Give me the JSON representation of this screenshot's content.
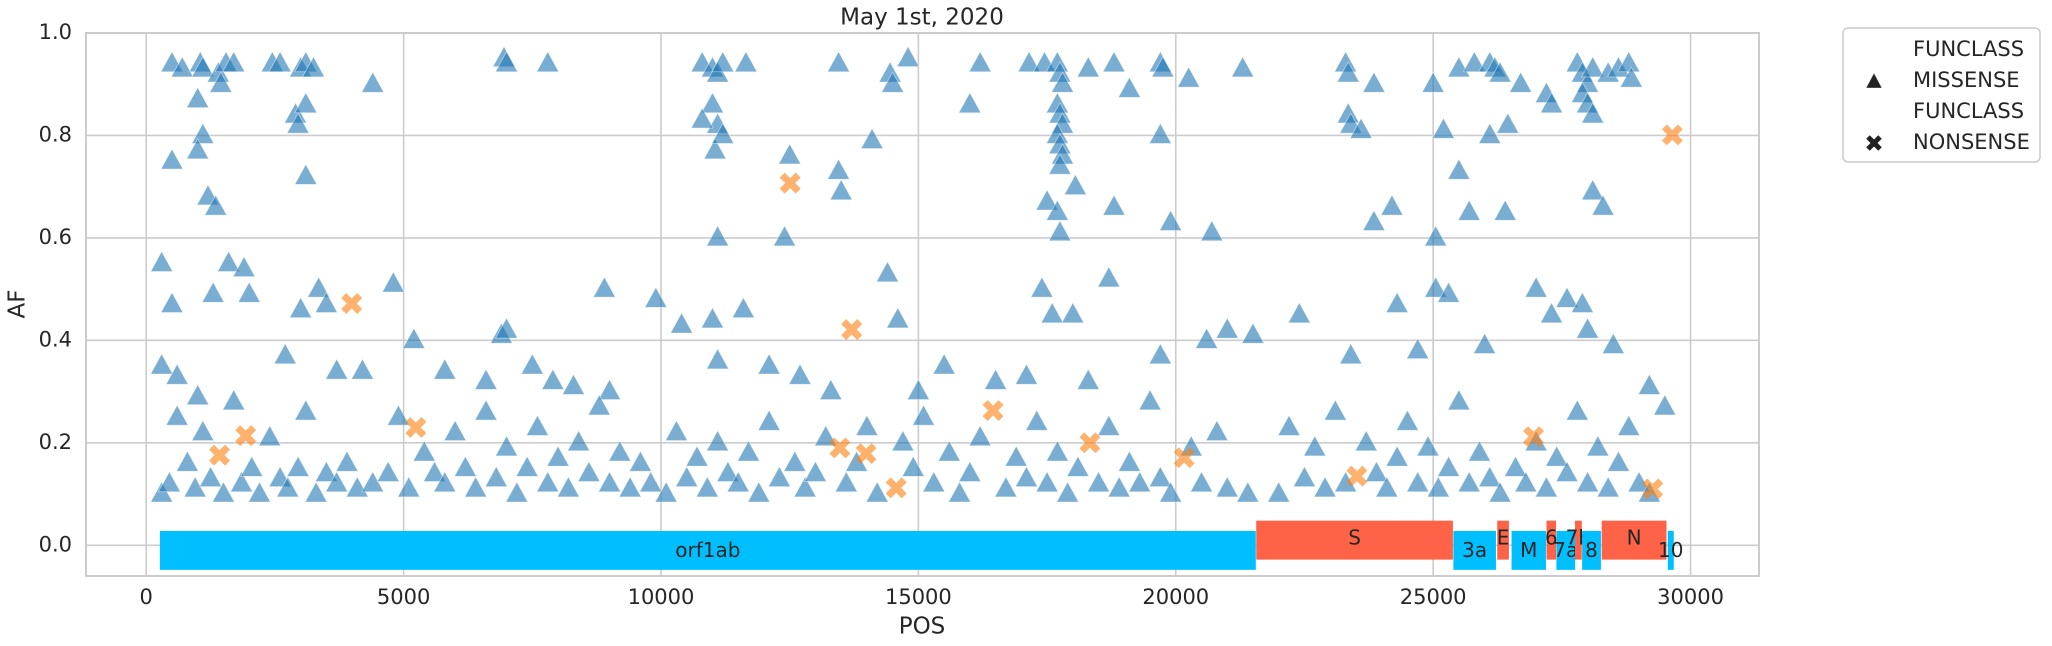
{
  "chart_data": {
    "type": "scatter",
    "title": "May 1st, 2020",
    "x_label": "POS",
    "y_label": "AF",
    "xlim": [
      -1170,
      31330
    ],
    "ylim": [
      -0.06,
      1.0
    ],
    "xticks": [
      0,
      5000,
      10000,
      15000,
      20000,
      25000,
      30000
    ],
    "yticks": [
      {
        "value": 0,
        "label": "0.0"
      },
      {
        "value": 0.2,
        "label": "0.2"
      },
      {
        "value": 0.4,
        "label": "0.4"
      },
      {
        "value": 0.6,
        "label": "0.6"
      },
      {
        "value": 0.8,
        "label": "0.8"
      },
      {
        "value": 1.0,
        "label": "1.0"
      }
    ],
    "grid": true,
    "legend": "outside-right",
    "series": [
      {
        "name": "MISSENSE",
        "legend_title": "FUNCLASS",
        "marker": "triangle",
        "color": "#1f77b4",
        "x": [
          500,
          700,
          1050,
          1100,
          1400,
          1450,
          1550,
          1700,
          2450,
          2600,
          3000,
          3100,
          3250,
          4400,
          6950,
          7000,
          7800,
          10800,
          11000,
          11100,
          11200,
          11650,
          13450,
          14450,
          14500,
          14800,
          16200,
          17150,
          17450,
          17700,
          17750,
          17800,
          18300,
          18800,
          19100,
          19700,
          19750,
          20250,
          21300,
          23300,
          23350,
          23850,
          25000,
          25500,
          25800,
          26100,
          26200,
          26300,
          26700,
          27200,
          27800,
          27900,
          28000,
          28100,
          28400,
          28600,
          28800,
          28850,
          1000,
          1100,
          1000,
          2900,
          2950,
          3100,
          3100,
          500,
          11000,
          11100,
          10800,
          11050,
          11200,
          12500,
          14100,
          16000,
          17700,
          17750,
          17800,
          17700,
          17750,
          17800,
          17750,
          18050,
          19700,
          23350,
          23400,
          23600,
          25200,
          26100,
          26450,
          27300,
          27900,
          28000,
          28100,
          300,
          1200,
          1350,
          11100,
          12400,
          13450,
          13500,
          17500,
          17700,
          17750,
          18800,
          19900,
          20700,
          24200,
          23850,
          25500,
          25700,
          26400,
          25050,
          28100,
          28300,
          1600,
          1900,
          3350,
          4800,
          8900,
          17400,
          18700,
          25050,
          21500,
          500,
          300,
          600,
          1000,
          1300,
          2000,
          2700,
          3000,
          3500,
          3700,
          4200,
          5200,
          5800,
          6600,
          6900,
          7000,
          7500,
          7900,
          8300,
          9000,
          9900,
          10400,
          11000,
          11600,
          11100,
          12100,
          12700,
          14400,
          14600,
          15500,
          16500,
          17100,
          17600,
          18000,
          18300,
          19700,
          20600,
          21000,
          22400,
          23400,
          24300,
          24700,
          25300,
          26000,
          27000,
          27300,
          27600,
          27900,
          28000,
          28500,
          29200,
          15000,
          13300,
          300,
          450,
          600,
          800,
          950,
          1100,
          1250,
          1500,
          1700,
          1850,
          2050,
          2200,
          2400,
          2600,
          2750,
          2950,
          3100,
          3300,
          3500,
          3700,
          3900,
          4100,
          4400,
          4700,
          4900,
          5100,
          5400,
          5600,
          5800,
          6000,
          6200,
          6400,
          6600,
          6800,
          7000,
          7200,
          7400,
          7600,
          7800,
          8000,
          8200,
          8400,
          8600,
          8800,
          9000,
          9200,
          9400,
          9600,
          9800,
          10100,
          10300,
          10500,
          10700,
          10900,
          11100,
          11300,
          11500,
          11700,
          11900,
          12100,
          12300,
          12600,
          12800,
          13000,
          13200,
          13600,
          13800,
          14000,
          14200,
          14700,
          14900,
          15100,
          15300,
          15600,
          15800,
          16000,
          16200,
          16700,
          16900,
          17100,
          17300,
          17500,
          17700,
          17900,
          18100,
          18500,
          18700,
          18900,
          19100,
          19300,
          19500,
          19700,
          19900,
          20300,
          20500,
          20800,
          21000,
          21400,
          22000,
          22200,
          22500,
          22700,
          22900,
          23100,
          23300,
          23700,
          23900,
          24100,
          24300,
          24500,
          24700,
          24900,
          25100,
          25300,
          25500,
          25700,
          25900,
          26100,
          26300,
          26600,
          26800,
          27000,
          27200,
          27400,
          27600,
          27800,
          28000,
          28200,
          28400,
          28600,
          28800,
          29000,
          29200,
          29500
        ],
        "values": [
          0.94,
          0.93,
          0.94,
          0.93,
          0.92,
          0.9,
          0.94,
          0.94,
          0.94,
          0.94,
          0.93,
          0.94,
          0.93,
          0.9,
          0.95,
          0.94,
          0.94,
          0.94,
          0.93,
          0.92,
          0.94,
          0.94,
          0.94,
          0.92,
          0.9,
          0.95,
          0.94,
          0.94,
          0.94,
          0.94,
          0.92,
          0.9,
          0.93,
          0.94,
          0.89,
          0.94,
          0.93,
          0.91,
          0.93,
          0.94,
          0.92,
          0.9,
          0.9,
          0.93,
          0.94,
          0.94,
          0.93,
          0.92,
          0.9,
          0.88,
          0.94,
          0.92,
          0.9,
          0.93,
          0.92,
          0.93,
          0.94,
          0.91,
          0.87,
          0.8,
          0.77,
          0.84,
          0.82,
          0.86,
          0.72,
          0.75,
          0.86,
          0.82,
          0.83,
          0.77,
          0.8,
          0.76,
          0.79,
          0.86,
          0.86,
          0.84,
          0.82,
          0.8,
          0.78,
          0.76,
          0.74,
          0.7,
          0.8,
          0.84,
          0.82,
          0.81,
          0.81,
          0.8,
          0.82,
          0.86,
          0.88,
          0.86,
          0.84,
          0.55,
          0.68,
          0.66,
          0.6,
          0.6,
          0.73,
          0.69,
          0.67,
          0.65,
          0.61,
          0.66,
          0.63,
          0.61,
          0.66,
          0.63,
          0.73,
          0.65,
          0.65,
          0.6,
          0.69,
          0.66,
          0.55,
          0.54,
          0.5,
          0.51,
          0.5,
          0.5,
          0.52,
          0.5,
          0.41,
          0.47,
          0.35,
          0.33,
          0.29,
          0.49,
          0.49,
          0.37,
          0.46,
          0.47,
          0.34,
          0.34,
          0.4,
          0.34,
          0.32,
          0.41,
          0.42,
          0.35,
          0.32,
          0.31,
          0.3,
          0.48,
          0.43,
          0.44,
          0.46,
          0.36,
          0.35,
          0.33,
          0.53,
          0.44,
          0.35,
          0.32,
          0.33,
          0.45,
          0.45,
          0.32,
          0.37,
          0.4,
          0.42,
          0.45,
          0.37,
          0.47,
          0.38,
          0.49,
          0.39,
          0.5,
          0.45,
          0.48,
          0.47,
          0.42,
          0.39,
          0.31,
          0.3,
          0.3,
          0.1,
          0.12,
          0.25,
          0.16,
          0.11,
          0.22,
          0.13,
          0.1,
          0.28,
          0.12,
          0.15,
          0.1,
          0.21,
          0.13,
          0.11,
          0.15,
          0.26,
          0.1,
          0.14,
          0.12,
          0.16,
          0.11,
          0.12,
          0.14,
          0.25,
          0.11,
          0.18,
          0.14,
          0.12,
          0.22,
          0.15,
          0.11,
          0.26,
          0.13,
          0.19,
          0.1,
          0.15,
          0.23,
          0.12,
          0.17,
          0.11,
          0.2,
          0.14,
          0.27,
          0.12,
          0.18,
          0.11,
          0.16,
          0.12,
          0.1,
          0.22,
          0.13,
          0.17,
          0.11,
          0.2,
          0.14,
          0.12,
          0.18,
          0.1,
          0.24,
          0.13,
          0.16,
          0.11,
          0.14,
          0.21,
          0.12,
          0.16,
          0.23,
          0.1,
          0.2,
          0.15,
          0.25,
          0.12,
          0.18,
          0.1,
          0.14,
          0.21,
          0.11,
          0.17,
          0.13,
          0.24,
          0.12,
          0.18,
          0.1,
          0.15,
          0.12,
          0.23,
          0.11,
          0.16,
          0.12,
          0.28,
          0.13,
          0.1,
          0.19,
          0.12,
          0.22,
          0.11,
          0.1,
          0.1,
          0.23,
          0.13,
          0.19,
          0.11,
          0.26,
          0.12,
          0.2,
          0.14,
          0.11,
          0.17,
          0.24,
          0.12,
          0.19,
          0.11,
          0.15,
          0.28,
          0.12,
          0.18,
          0.13,
          0.1,
          0.15,
          0.12,
          0.2,
          0.11,
          0.17,
          0.14,
          0.26,
          0.12,
          0.19,
          0.11,
          0.16,
          0.23,
          0.12,
          0.1,
          0.27
        ]
      },
      {
        "name": "NONSENSE",
        "legend_title": "FUNCLASS",
        "marker": "x",
        "color": "#ff7f0e",
        "x": [
          1424,
          1932,
          3992,
          5238,
          12510,
          13476,
          13705,
          13984,
          14569,
          16451,
          18332,
          20163,
          23519,
          26951,
          29265,
          29647
        ],
        "values": [
          0.176,
          0.214,
          0.472,
          0.23,
          0.707,
          0.19,
          0.421,
          0.179,
          0.112,
          0.263,
          0.2,
          0.171,
          0.135,
          0.212,
          0.11,
          0.801
        ]
      }
    ],
    "genes": [
      {
        "name": "orf1ab",
        "start": 266,
        "end": 21555,
        "color": "#00bfff"
      },
      {
        "name": "S",
        "start": 21563,
        "end": 25384,
        "color": "#ff6347"
      },
      {
        "name": "3a",
        "start": 25393,
        "end": 26220,
        "color": "#00bfff"
      },
      {
        "name": "E",
        "start": 26245,
        "end": 26472,
        "color": "#ff6347"
      },
      {
        "name": "M",
        "start": 26523,
        "end": 27191,
        "color": "#00bfff"
      },
      {
        "name": "6",
        "start": 27202,
        "end": 27387,
        "color": "#ff6347"
      },
      {
        "name": "7a",
        "start": 27394,
        "end": 27759,
        "color": "#00bfff"
      },
      {
        "name": "7b",
        "start": 27756,
        "end": 27887,
        "color": "#ff6347"
      },
      {
        "name": "8",
        "start": 27894,
        "end": 28259,
        "color": "#00bfff"
      },
      {
        "name": "N",
        "start": 28274,
        "end": 29533,
        "color": "#ff6347"
      },
      {
        "name": "10",
        "start": 29558,
        "end": 29674,
        "color": "#00bfff"
      }
    ]
  }
}
